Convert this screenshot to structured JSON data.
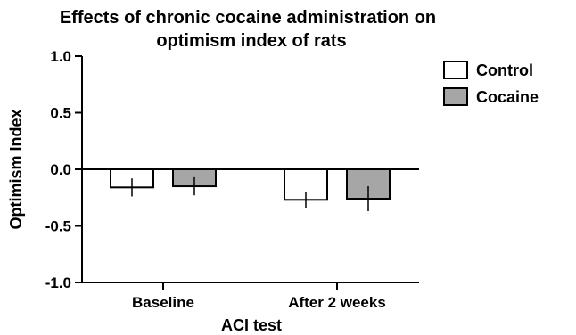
{
  "chart_data": {
    "type": "bar",
    "title": "Effects of chronic cocaine administration on optimism index of rats",
    "title_lines": [
      "Effects of chronic cocaine administration on",
      "optimism index of rats"
    ],
    "xlabel": "ACI test",
    "ylabel": "Optimism Index",
    "categories": [
      "Baseline",
      "After 2 weeks"
    ],
    "ylim": [
      -1.0,
      1.0
    ],
    "yticks": [
      1.0,
      0.5,
      0.0,
      -0.5,
      -1.0
    ],
    "ytick_labels": [
      "1.0",
      "0.5",
      "0.0",
      "-0.5",
      "-1.0"
    ],
    "series": [
      {
        "name": "Control",
        "values": [
          -0.16,
          -0.27
        ],
        "errors": [
          0.08,
          0.07
        ],
        "color": "#ffffff"
      },
      {
        "name": "Cocaine",
        "values": [
          -0.15,
          -0.26
        ],
        "errors": [
          0.08,
          0.11
        ],
        "color": "#a6a6a6"
      }
    ],
    "legend_position": "top-right",
    "grid": false
  }
}
